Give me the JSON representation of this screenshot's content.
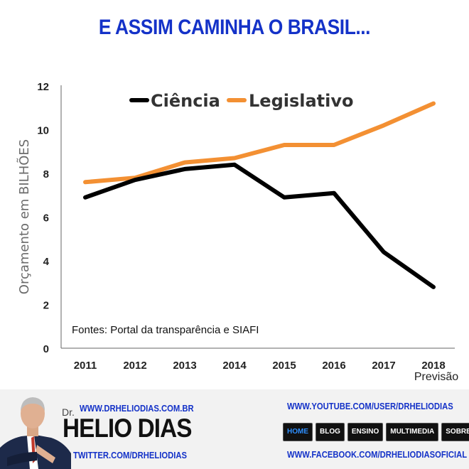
{
  "headline": "E ASSIM CAMINHA O BRASIL...",
  "chart_data": {
    "type": "line",
    "title": "",
    "ylabel": "Orçamento em BILHÕES",
    "xlabel": "",
    "x": [
      "2011",
      "2012",
      "2013",
      "2014",
      "2015",
      "2016",
      "2017",
      "2018"
    ],
    "x_note": "Previsão",
    "ylim": [
      0,
      12
    ],
    "yticks": [
      "0",
      "2",
      "4",
      "6",
      "8",
      "10",
      "12"
    ],
    "legend_position": "top",
    "grid": false,
    "series": [
      {
        "name": "Ciência",
        "color": "#000000",
        "values": [
          6.9,
          7.7,
          8.2,
          8.4,
          6.9,
          7.1,
          4.4,
          2.8
        ]
      },
      {
        "name": "Legislativo",
        "color": "#f39033",
        "values": [
          7.6,
          7.8,
          8.5,
          8.7,
          9.3,
          9.3,
          10.2,
          11.2
        ]
      }
    ],
    "annotation": "Fontes: Portal da transparência e SIAFI"
  },
  "footer": {
    "site": "WWW.DRHELIODIAS.COM.BR",
    "brand_prefix": "Dr.",
    "brand_name": "HELIO DIAS",
    "twitter": "TWITTER.COM/DRHELIODIAS",
    "youtube": "WWW.YOUTUBE.COM/USER/DRHELIODIAS",
    "facebook": "WWW.FACEBOOK.COM/DRHELIODIASOFICIAL",
    "nav": [
      "HOME",
      "BLOG",
      "ENSINO",
      "MULTIMEDIA",
      "SOBRE"
    ],
    "colors": {
      "link": "#1432c8",
      "nav_bg": "#111111",
      "nav_active": "#2e8fff"
    }
  }
}
